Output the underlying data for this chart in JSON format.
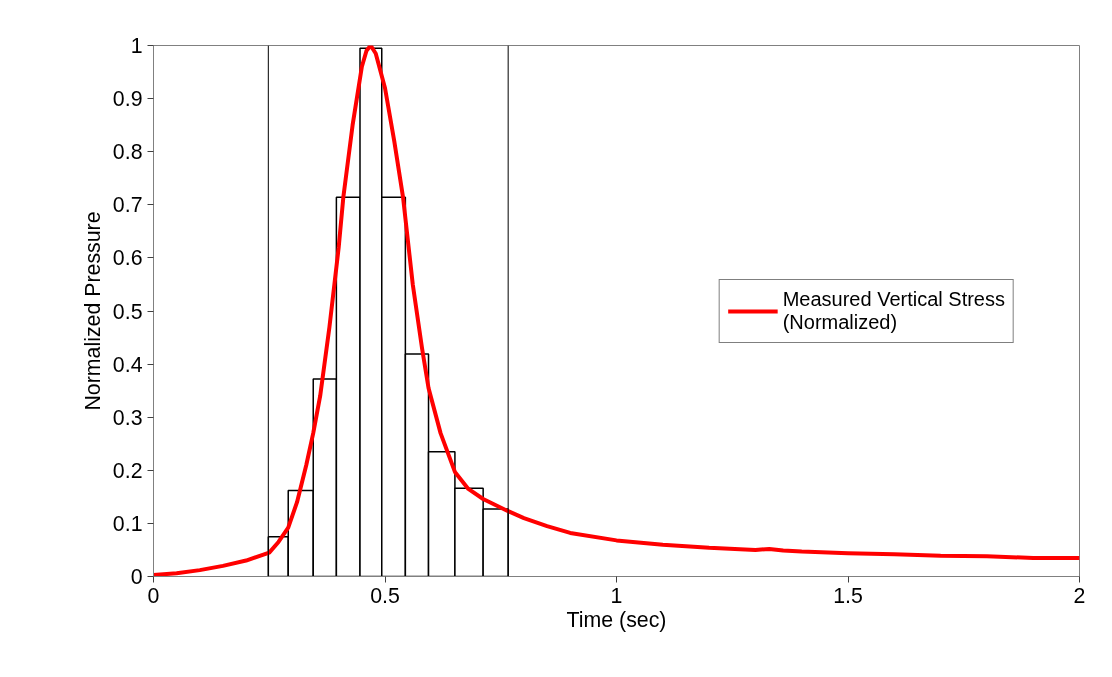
{
  "chart_data": {
    "type": "histogram",
    "xlabel": "Time (sec)",
    "ylabel": "Normalized Pressure",
    "bins": [
      0.248,
      0.291,
      0.345,
      0.395,
      0.446,
      0.493,
      0.544,
      0.594,
      0.651,
      0.712,
      0.766
    ],
    "values": [
      0.075,
      0.162,
      0.372,
      0.714,
      0.995,
      0.714,
      0.419,
      0.235,
      0.166,
      0.127
    ],
    "series": [
      {
        "name": "Measured Vertical Stress\n(Normalized)",
        "color": "#ff0000",
        "type": "line",
        "x": [
          0,
          0.05,
          0.1,
          0.15,
          0.2,
          0.25,
          0.27,
          0.291,
          0.31,
          0.33,
          0.345,
          0.36,
          0.38,
          0.4,
          0.41,
          0.43,
          0.45,
          0.46,
          0.469,
          0.48,
          0.5,
          0.52,
          0.539,
          0.56,
          0.58,
          0.594,
          0.62,
          0.651,
          0.68,
          0.712,
          0.766,
          0.8,
          0.85,
          0.9,
          1.0,
          1.1,
          1.2,
          1.3,
          1.33,
          1.36,
          1.4,
          1.5,
          1.6,
          1.7,
          1.8,
          1.9,
          2.0
        ],
        "values": [
          0.003,
          0.006,
          0.012,
          0.02,
          0.03,
          0.045,
          0.065,
          0.092,
          0.14,
          0.21,
          0.27,
          0.34,
          0.47,
          0.62,
          0.714,
          0.85,
          0.96,
          0.99,
          1.0,
          0.985,
          0.92,
          0.82,
          0.714,
          0.55,
          0.43,
          0.355,
          0.27,
          0.197,
          0.165,
          0.146,
          0.123,
          0.11,
          0.095,
          0.082,
          0.068,
          0.06,
          0.054,
          0.05,
          0.052,
          0.049,
          0.047,
          0.044,
          0.042,
          0.039,
          0.038,
          0.035,
          0.035
        ]
      }
    ],
    "ref_lines": [
      {
        "axis": "x",
        "value": 0.248,
        "color": "#000000"
      },
      {
        "axis": "x",
        "value": 0.766,
        "color": "#000000"
      }
    ],
    "xlim": [
      0,
      2
    ],
    "xticks": [
      0,
      0.5,
      1,
      1.5,
      2
    ],
    "ylim": [
      0,
      1
    ],
    "yticks": [
      0,
      0.1,
      0.2,
      0.3,
      0.4,
      0.5,
      0.6,
      0.7,
      0.8,
      0.9,
      1
    ],
    "legend": "right",
    "grid": false
  }
}
